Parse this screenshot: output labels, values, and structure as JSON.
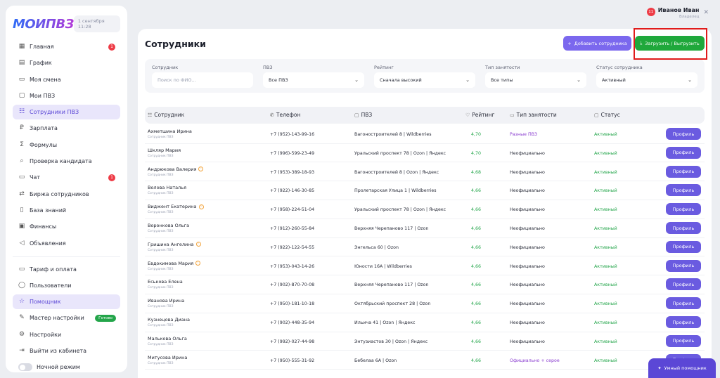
{
  "app": {
    "logo_text": "МОИПВЗ",
    "date": "1 сентября 11:28"
  },
  "user": {
    "name": "Иванов Иван",
    "role": "Владелец",
    "notifications": "11"
  },
  "sidebar": {
    "items": [
      {
        "label": "Главная",
        "icon": "grid-icon",
        "badge": "1"
      },
      {
        "label": "График",
        "icon": "chart-icon"
      },
      {
        "label": "Моя смена",
        "icon": "doc-icon"
      },
      {
        "label": "Мои ПВЗ",
        "icon": "box-icon"
      },
      {
        "label": "Сотрудники ПВЗ",
        "icon": "users-icon",
        "active": true
      },
      {
        "label": "Зарплата",
        "icon": "ruble-icon"
      },
      {
        "label": "Формулы",
        "icon": "formula-icon"
      },
      {
        "label": "Проверка кандидата",
        "icon": "search-user-icon"
      },
      {
        "label": "Чат",
        "icon": "chat-icon",
        "badge": "1"
      },
      {
        "label": "Биржа сотрудников",
        "icon": "exchange-icon"
      },
      {
        "label": "База знаний",
        "icon": "book-icon"
      },
      {
        "label": "Финансы",
        "icon": "wallet-icon"
      },
      {
        "label": "Объявления",
        "icon": "megaphone-icon"
      }
    ],
    "items2": [
      {
        "label": "Тариф и оплата",
        "icon": "card-icon"
      },
      {
        "label": "Пользователи",
        "icon": "user-icon"
      },
      {
        "label": "Помощник",
        "icon": "star-icon",
        "active": true
      },
      {
        "label": "Мастер настройки",
        "icon": "wand-icon",
        "badge_green": "Готово"
      },
      {
        "label": "Настройки",
        "icon": "gear-icon"
      },
      {
        "label": "Выйти из кабинета",
        "icon": "logout-icon"
      },
      {
        "label": "Ночной режим",
        "icon": "toggle"
      }
    ]
  },
  "page": {
    "title": "Сотрудники",
    "add_button": "Добавить сотрудника",
    "upload_button": "Загрузить / Выгрузить"
  },
  "filters": [
    {
      "label": "Сотрудник",
      "value": "Поиск по ФИО...",
      "placeholder": true
    },
    {
      "label": "ПВЗ",
      "value": "Все ПВЗ"
    },
    {
      "label": "Рейтинг",
      "value": "Сначала высокий"
    },
    {
      "label": "Тип занятости",
      "value": "Все типы"
    },
    {
      "label": "Статус сотрудника",
      "value": "Активный"
    }
  ],
  "table": {
    "headers": [
      "Сотрудник",
      "Телефон",
      "ПВЗ",
      "Рейтинг",
      "Тип занятости",
      "Статус"
    ],
    "sublabel": "Сотрудник ПВЗ",
    "profile_label": "Профиль",
    "rows": [
      {
        "name": "Ахметшина Ирина",
        "phone": "+7 (952)-143-99-16",
        "pvz": "Вагоностроителей 8 | Wildberries",
        "rating": "4,70",
        "type": "Разные ПВЗ",
        "type_purple": true,
        "status": "Активный"
      },
      {
        "name": "Шкляр Мария",
        "phone": "+7 (996)-599-23-49",
        "pvz": "Уральский проспект 78 | Ozon | Яндекс",
        "rating": "4,70",
        "type": "Неофициально",
        "status": "Активный"
      },
      {
        "name": "Андрюкова Валерия",
        "warn": true,
        "phone": "+7 (953)-389-18-93",
        "pvz": "Вагоностроителей 8 | Ozon | Яндекс",
        "rating": "4,68",
        "type": "Неофициально",
        "status": "Активный"
      },
      {
        "name": "Волова Наталья",
        "phone": "+7 (922)-146-30-85",
        "pvz": "Пролетарская Улица 1 | Wildberries",
        "rating": "4,66",
        "type": "Неофициально",
        "status": "Активный"
      },
      {
        "name": "Виджент Екатерина",
        "warn": true,
        "phone": "+7 (958)-224-51-04",
        "pvz": "Уральский проспект 78 | Ozon | Яндекс",
        "rating": "4,66",
        "type": "Неофициально",
        "status": "Активный"
      },
      {
        "name": "Воронкова Ольга",
        "phone": "+7 (912)-260-55-84",
        "pvz": "Верхняя Черепаново 117 | Ozon",
        "rating": "4,66",
        "type": "Неофициально",
        "status": "Активный"
      },
      {
        "name": "Гришина Ангелина",
        "warn": true,
        "phone": "+7 (922)-122-54-55",
        "pvz": "Энгельса 60 | Ozon",
        "rating": "4,66",
        "type": "Неофициально",
        "status": "Активный"
      },
      {
        "name": "Евдокимова Мария",
        "warn": true,
        "phone": "+7 (953)-043-14-26",
        "pvz": "Юности 16А | Wildberries",
        "rating": "4,66",
        "type": "Неофициально",
        "status": "Активный"
      },
      {
        "name": "Еськова Елена",
        "phone": "+7 (902)-870-70-08",
        "pvz": "Верхняя Черепаново 117 | Ozon",
        "rating": "4,66",
        "type": "Неофициально",
        "status": "Активный"
      },
      {
        "name": "Иванова Ирина",
        "phone": "+7 (950)-181-10-18",
        "pvz": "Октябрьский проспект 28 | Ozon",
        "rating": "4,66",
        "type": "Неофициально",
        "status": "Активный"
      },
      {
        "name": "Кузнецова Диана",
        "phone": "+7 (902)-448-35-94",
        "pvz": "Ильича 41 | Ozon | Яндекс",
        "rating": "4,66",
        "type": "Неофициально",
        "status": "Активный"
      },
      {
        "name": "Малькова Ольга",
        "phone": "+7 (992)-027-44-98",
        "pvz": "Энтузиастов 30 | Ozon | Яндекс",
        "rating": "4,66",
        "type": "Неофициально",
        "status": "Активный"
      },
      {
        "name": "Митусова Ирина",
        "phone": "+7 (950)-555-31-92",
        "pvz": "Бебелаа 6А | Ozon",
        "rating": "4,66",
        "type": "Официально + серое",
        "type_purple": true,
        "status": "Активный"
      }
    ]
  },
  "assistant_button": "Умный помощник"
}
